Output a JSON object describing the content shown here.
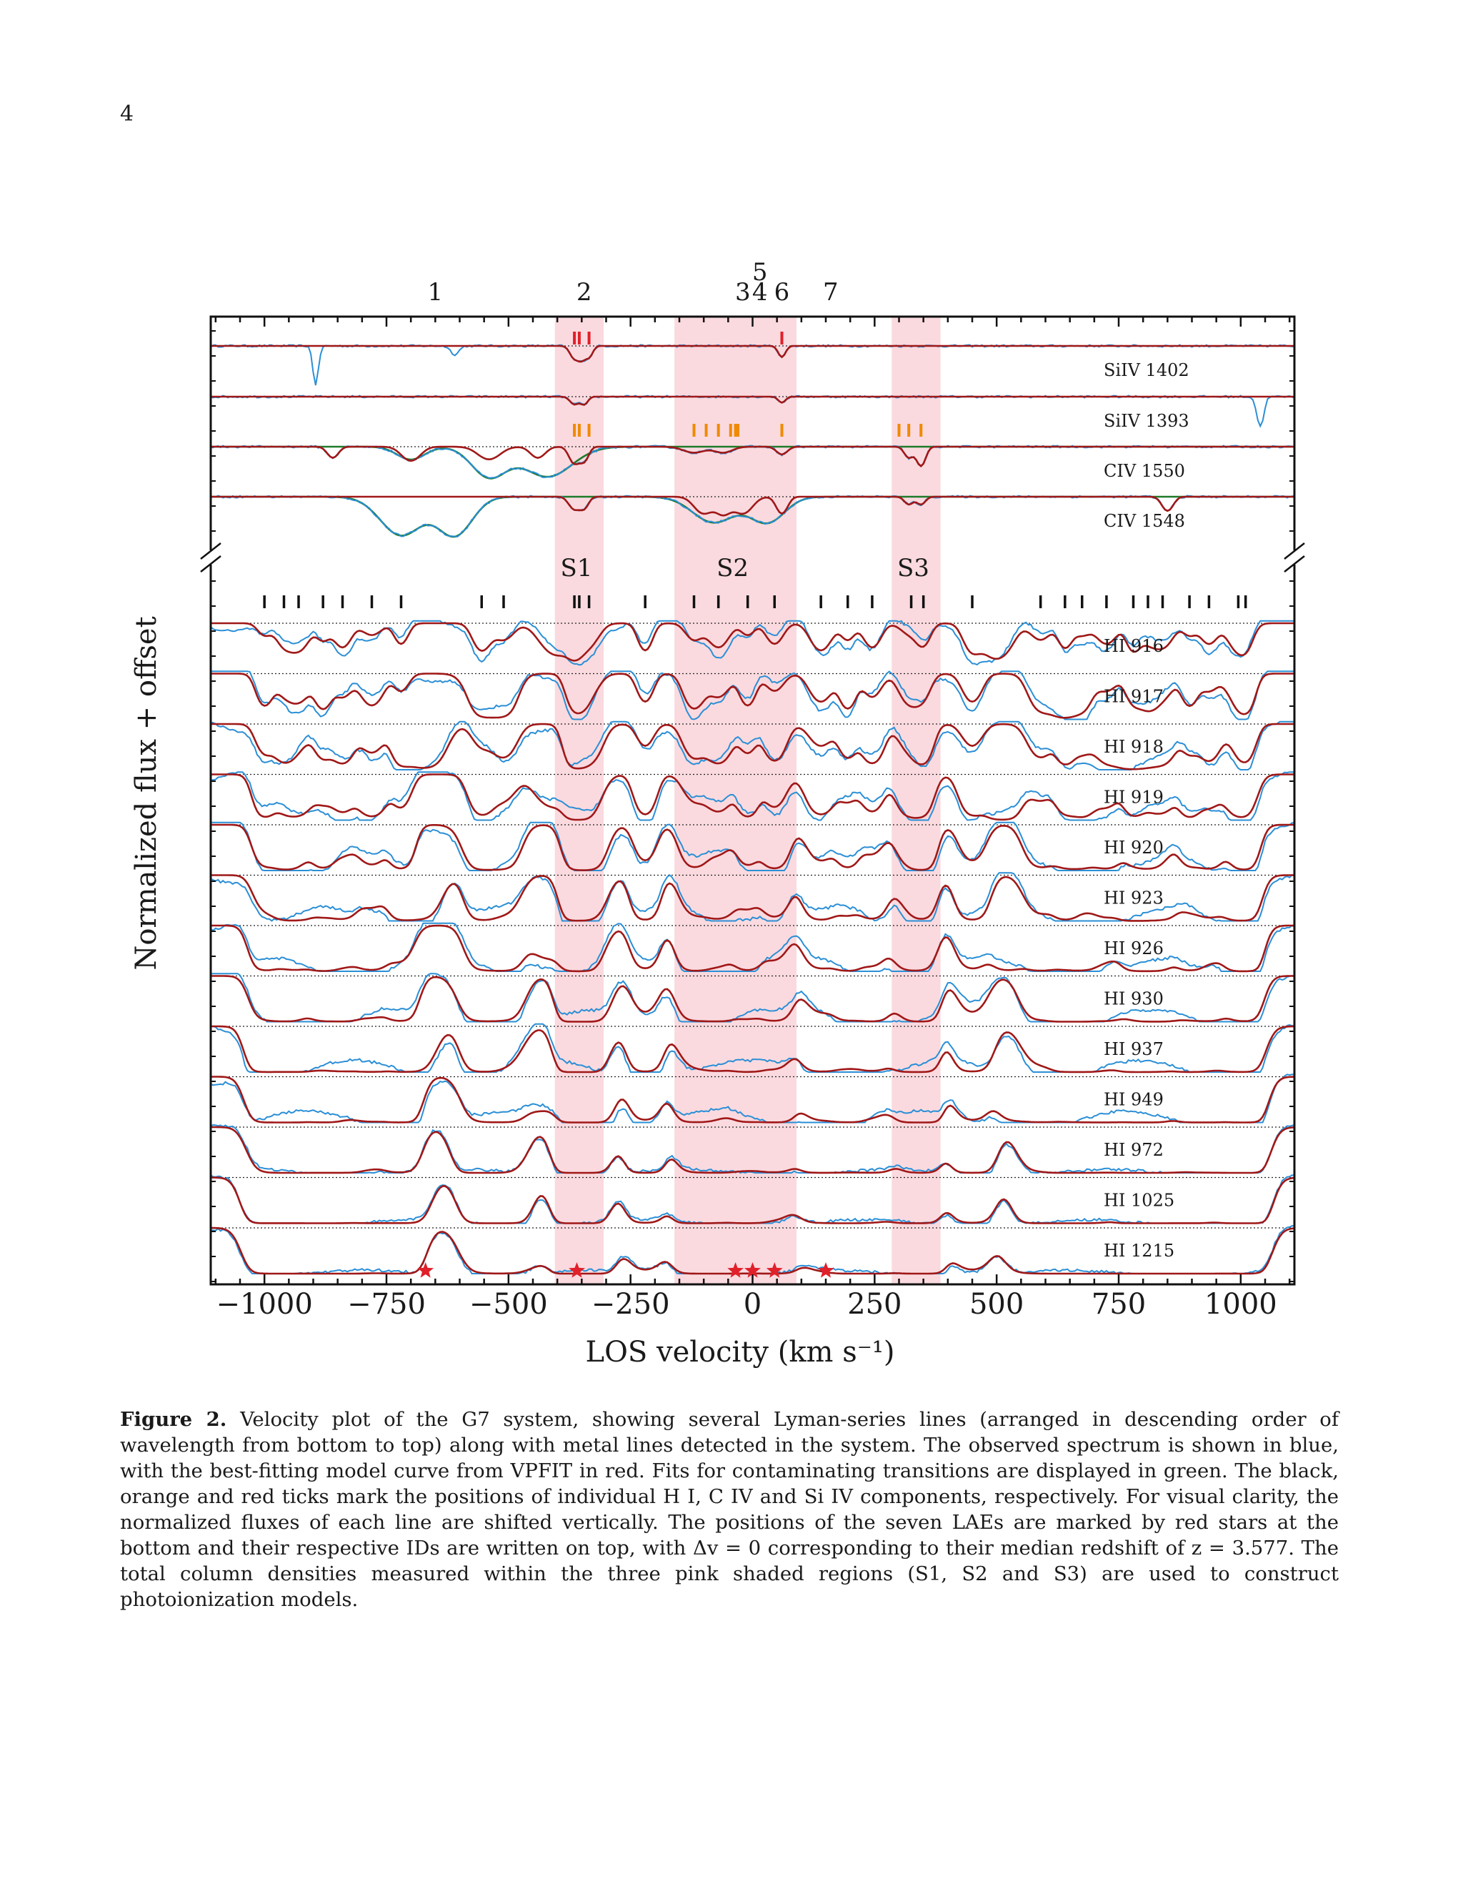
{
  "page": {
    "number": "4"
  },
  "figure": {
    "ylabel": "Normalized flux + offset",
    "xlabel": "LOS velocity (km s⁻¹)",
    "xticks": [
      "−1000",
      "−750",
      "−500",
      "−250",
      "0",
      "250",
      "500",
      "750",
      "1000"
    ],
    "lae_ids": [
      {
        "id": "1",
        "v": -650
      },
      {
        "id": "2",
        "v": -345
      },
      {
        "id": "3",
        "v": -20
      },
      {
        "id": "4",
        "v": 15
      },
      {
        "id": "5",
        "v": 15
      },
      {
        "id": "6",
        "v": 60
      },
      {
        "id": "7",
        "v": 160
      }
    ],
    "regions": [
      {
        "label": "S1",
        "from": -405,
        "to": -305
      },
      {
        "label": "S2",
        "from": -160,
        "to": 90
      },
      {
        "label": "S3",
        "from": 285,
        "to": 385
      }
    ]
  },
  "chart_data": {
    "type": "line",
    "title": "Velocity plot of the G7 system",
    "xlabel": "LOS velocity (km s⁻¹)",
    "ylabel": "Normalized flux + offset",
    "xlim": [
      -1110,
      1110
    ],
    "xticks": [
      -1000,
      -750,
      -500,
      -250,
      0,
      250,
      500,
      750,
      1000
    ],
    "metal_panels": [
      "SiIV 1402",
      "SiIV 1393",
      "CIV 1550",
      "CIV 1548"
    ],
    "hi_panels": [
      "HI 916",
      "HI 917",
      "HI 918",
      "HI 919",
      "HI 920",
      "HI 923",
      "HI 926",
      "HI 930",
      "HI 937",
      "HI 949",
      "HI 972",
      "HI 1025",
      "HI 1215"
    ],
    "series": [
      {
        "name": "observed spectrum",
        "color": "#2b8fd6"
      },
      {
        "name": "best-fitting model (VPFIT)",
        "color": "#a01818"
      },
      {
        "name": "contaminating transitions fit",
        "color": "#1f7a2a"
      }
    ],
    "hi_components": [
      -1000,
      -960,
      -930,
      -880,
      -840,
      -780,
      -720,
      -555,
      -510,
      -365,
      -355,
      -335,
      -220,
      -120,
      -70,
      -10,
      45,
      140,
      195,
      245,
      325,
      350,
      450,
      590,
      640,
      675,
      725,
      780,
      810,
      840,
      895,
      935,
      995,
      1010
    ],
    "civ_components": [
      -365,
      -355,
      -335,
      -120,
      -95,
      -70,
      -45,
      -35,
      -30,
      60,
      300,
      320,
      345
    ],
    "siiv_components": [
      -365,
      -355,
      -335,
      60
    ],
    "lae_stars": [
      -670,
      -360,
      -35,
      0,
      45,
      150
    ],
    "regions": [
      {
        "label": "S1",
        "from": -405,
        "to": -305
      },
      {
        "label": "S2",
        "from": -160,
        "to": 90
      },
      {
        "label": "S3",
        "from": 285,
        "to": 385
      }
    ],
    "colors": {
      "region": "#fadadf",
      "hi_ticks": "#111111",
      "civ_ticks": "#f08a00",
      "siiv_ticks": "#e0202a",
      "stars": "#e0202a"
    }
  },
  "caption": {
    "label": "Figure 2.",
    "text": "Velocity plot of the G7 system, showing several Lyman-series lines (arranged in descending order of wavelength from bottom to top) along with metal lines detected in the system. The observed spectrum is shown in blue, with the best-fitting model curve from VPFIT in red. Fits for contaminating transitions are displayed in green. The black, orange and red ticks mark the positions of individual H I, C IV and Si IV components, respectively. For visual clarity, the normalized fluxes of each line are shifted vertically. The positions of the seven LAEs are marked by red stars at the bottom and their respective IDs are written on top, with Δv = 0 corresponding to their median redshift of z = 3.577. The total column densities measured within the three pink shaded regions (S1, S2 and S3) are used to construct photoionization models."
  }
}
